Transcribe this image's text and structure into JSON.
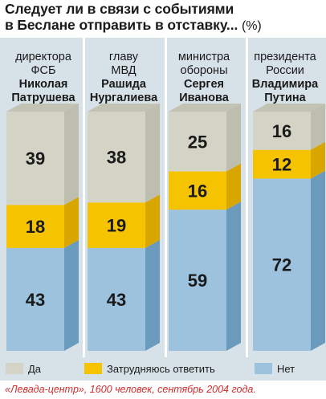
{
  "header": {
    "title_line1": "Следует ли в связи с событиями",
    "title_line2": "в Беслане отправить в отставку...",
    "unit": "(%)"
  },
  "chart_data": {
    "type": "bar",
    "stacked": true,
    "categories": [
      [
        "директора",
        "ФСБ",
        "Николая",
        "Патрушева"
      ],
      [
        "главу",
        "МВД",
        "Рашида",
        "Нургалиева"
      ],
      [
        "министра",
        "обороны",
        "Сергея",
        "Иванова"
      ],
      [
        "президента",
        "России",
        "Владимира",
        "Путина"
      ]
    ],
    "series": [
      {
        "name": "Нет",
        "values": [
          43,
          43,
          59,
          72
        ]
      },
      {
        "name": "Затрудняюсь ответить",
        "values": [
          18,
          19,
          16,
          12
        ]
      },
      {
        "name": "Да",
        "values": [
          39,
          38,
          25,
          16
        ]
      }
    ],
    "ylim": [
      0,
      100
    ],
    "legend_position": "bottom",
    "colors": {
      "Да": {
        "front": "#d4d4c6",
        "side": "#bebeae",
        "top": "#c3c3b4"
      },
      "Затрудняюсь ответить": {
        "front": "#f6c300",
        "side": "#d9a600",
        "top": "#e6b400"
      },
      "Нет": {
        "front": "#9cc2de",
        "side": "#6a9bbd",
        "top": "#80abcb"
      }
    }
  },
  "source": "«Левада-центр», 1600 человек, сентябрь 2004 года."
}
